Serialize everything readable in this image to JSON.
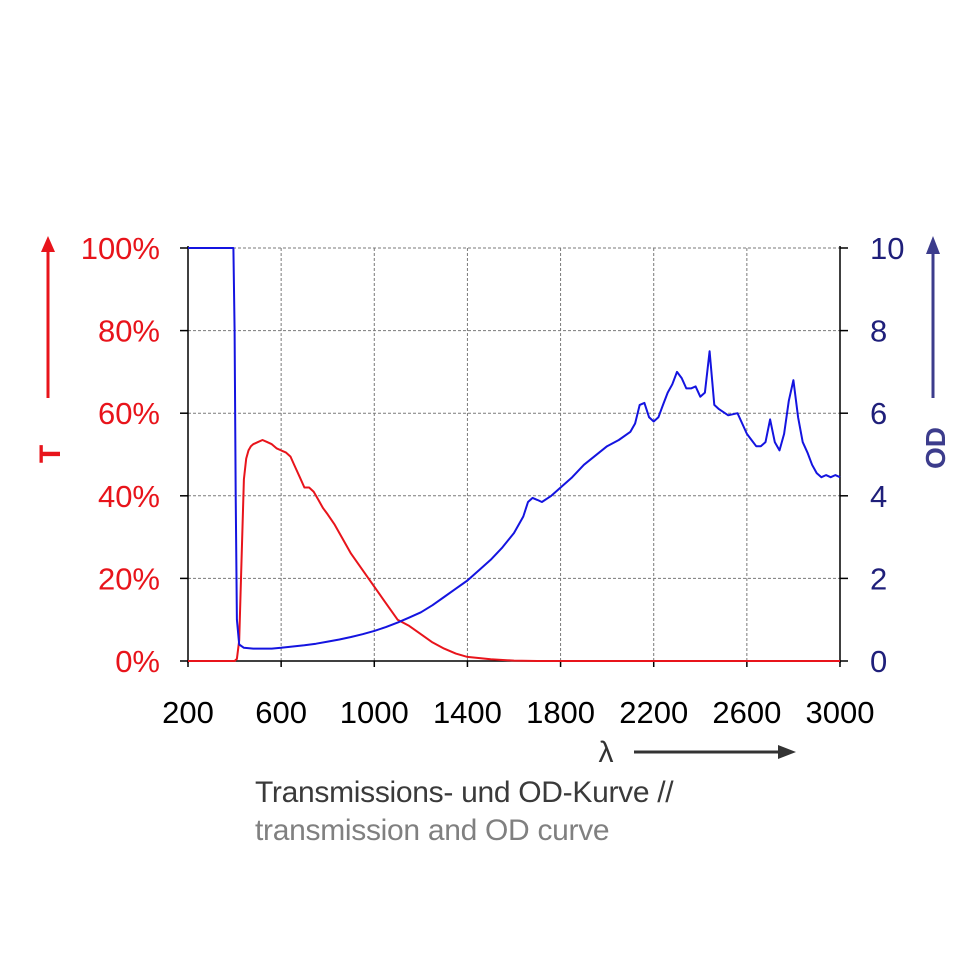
{
  "colors": {
    "transmission": "#e8141b",
    "od": "#1414e0",
    "od_label": "#1f1f7a",
    "od_axis_label": "#3c3c8c",
    "grid": "#7a7a7a",
    "axis": "#000000",
    "wavelength_arrow": "#333333"
  },
  "caption": {
    "line1": "Transmissions- und OD-Kurve //",
    "line2": "transmission and OD curve"
  },
  "chart_data": {
    "type": "line",
    "grid": true,
    "x_axis": {
      "label": "λ",
      "range": [
        200,
        3000
      ],
      "ticks": [
        200,
        600,
        1000,
        1400,
        1800,
        2200,
        2600,
        3000
      ]
    },
    "y_left": {
      "label": "T",
      "range": [
        0,
        100
      ],
      "ticks": [
        0,
        20,
        40,
        60,
        80,
        100
      ],
      "tick_labels": [
        "0%",
        "20%",
        "40%",
        "60%",
        "80%",
        "100%"
      ]
    },
    "y_right": {
      "label": "OD",
      "range": [
        0,
        10
      ],
      "ticks": [
        0,
        2,
        4,
        6,
        8,
        10
      ],
      "tick_labels": [
        "0",
        "2",
        "4",
        "6",
        "8",
        "10"
      ]
    },
    "series": [
      {
        "name": "T",
        "axis": "left",
        "x": [
          200,
          400,
          410,
          420,
          430,
          440,
          450,
          460,
          470,
          480,
          500,
          520,
          540,
          560,
          580,
          600,
          620,
          640,
          660,
          680,
          700,
          720,
          740,
          760,
          780,
          800,
          830,
          860,
          900,
          950,
          1000,
          1050,
          1100,
          1150,
          1200,
          1250,
          1300,
          1350,
          1400,
          1500,
          1600,
          1700,
          1800,
          2000,
          2400,
          2800,
          3000
        ],
        "y": [
          0,
          0,
          0.5,
          5,
          25,
          44,
          49,
          51,
          52,
          52.5,
          53,
          53.5,
          53,
          52.5,
          51.5,
          51,
          50.5,
          49.5,
          47,
          44.5,
          42,
          42,
          41,
          39,
          37,
          35.5,
          33,
          30,
          26,
          22,
          18,
          14,
          10,
          8.5,
          6.5,
          4.5,
          3,
          1.8,
          1,
          0.4,
          0.1,
          0,
          0,
          0,
          0,
          0,
          0
        ]
      },
      {
        "name": "OD",
        "axis": "right",
        "x": [
          200,
          300,
          380,
          395,
          400,
          405,
          410,
          420,
          440,
          480,
          520,
          560,
          600,
          650,
          700,
          750,
          800,
          850,
          900,
          950,
          1000,
          1050,
          1100,
          1150,
          1200,
          1250,
          1300,
          1350,
          1400,
          1450,
          1500,
          1550,
          1600,
          1640,
          1660,
          1680,
          1700,
          1720,
          1760,
          1800,
          1850,
          1900,
          2000,
          2050,
          2100,
          2120,
          2140,
          2160,
          2180,
          2200,
          2220,
          2240,
          2260,
          2280,
          2300,
          2320,
          2340,
          2360,
          2380,
          2400,
          2420,
          2440,
          2460,
          2480,
          2520,
          2560,
          2580,
          2600,
          2620,
          2640,
          2660,
          2680,
          2700,
          2720,
          2740,
          2760,
          2780,
          2800,
          2820,
          2840,
          2860,
          2880,
          2900,
          2920,
          2940,
          2960,
          2980,
          3000
        ],
        "y": [
          10,
          10,
          10,
          10,
          8,
          4,
          1,
          0.4,
          0.32,
          0.3,
          0.3,
          0.3,
          0.32,
          0.35,
          0.38,
          0.42,
          0.47,
          0.52,
          0.58,
          0.65,
          0.73,
          0.82,
          0.93,
          1.05,
          1.18,
          1.35,
          1.55,
          1.75,
          1.95,
          2.2,
          2.45,
          2.75,
          3.1,
          3.5,
          3.85,
          3.95,
          3.9,
          3.85,
          4.0,
          4.2,
          4.45,
          4.75,
          5.2,
          5.35,
          5.55,
          5.75,
          6.2,
          6.25,
          5.9,
          5.8,
          5.9,
          6.2,
          6.5,
          6.7,
          7.0,
          6.85,
          6.6,
          6.6,
          6.65,
          6.4,
          6.5,
          7.5,
          6.2,
          6.1,
          5.95,
          6.0,
          5.75,
          5.5,
          5.35,
          5.2,
          5.2,
          5.3,
          5.85,
          5.3,
          5.1,
          5.5,
          6.3,
          6.8,
          5.9,
          5.3,
          5.05,
          4.75,
          4.55,
          4.45,
          4.5,
          4.45,
          4.5,
          4.45
        ]
      }
    ]
  }
}
